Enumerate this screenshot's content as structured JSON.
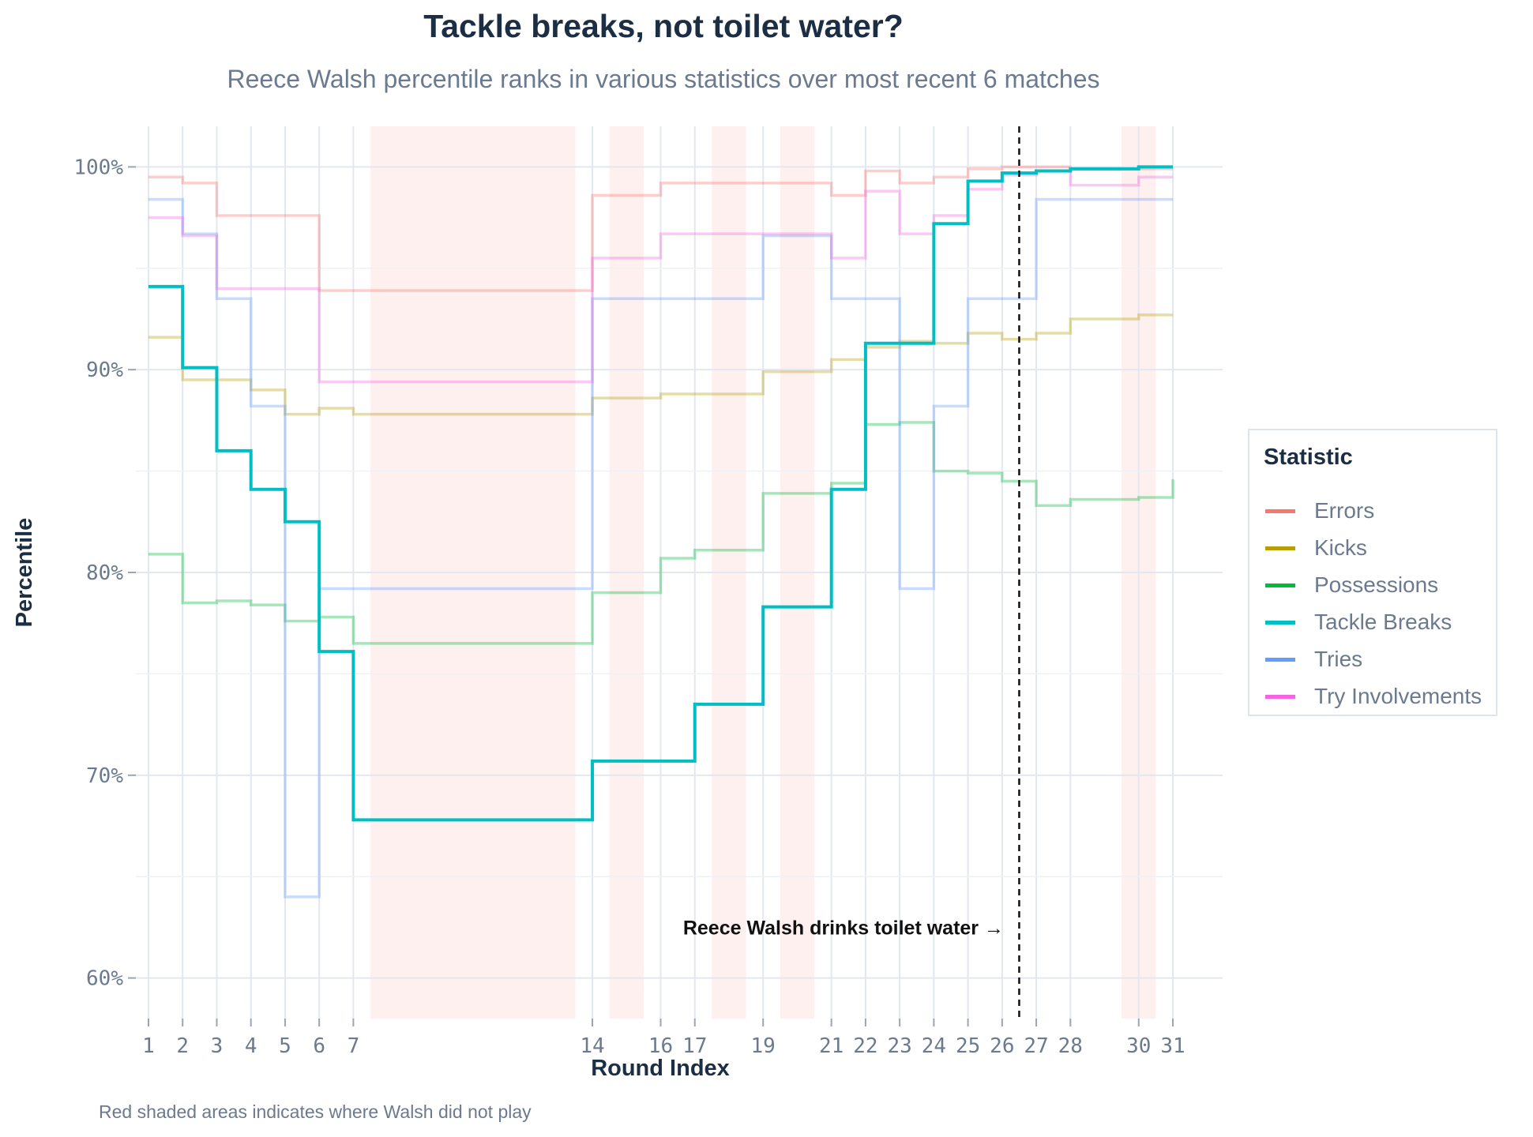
{
  "chart_data": {
    "type": "line",
    "step": "post",
    "title": "Tackle breaks, not toilet water?",
    "subtitle": "Reece Walsh percentile ranks in various statistics over most recent 6 matches",
    "xlabel": "Round Index",
    "ylabel": "Percentile",
    "caption": "Red shaded areas indicates where Walsh did not play",
    "xlim": [
      1,
      31
    ],
    "ylim": [
      58,
      102
    ],
    "x_ticks": [
      1,
      2,
      3,
      4,
      5,
      6,
      7,
      14,
      16,
      17,
      19,
      21,
      22,
      23,
      24,
      25,
      26,
      27,
      28,
      30,
      31
    ],
    "y_ticks": [
      60,
      70,
      80,
      90,
      100
    ],
    "y_tick_labels": [
      "60%",
      "70%",
      "80%",
      "90%",
      "100%"
    ],
    "did_not_play_ranges": [
      [
        7.5,
        13.5
      ],
      [
        14.5,
        15.5
      ],
      [
        17.5,
        18.5
      ],
      [
        19.5,
        20.5
      ],
      [
        29.5,
        30.5
      ]
    ],
    "annotation": {
      "text": "Reece Walsh drinks toilet water →",
      "x_line": 26.5,
      "text_x": 26.05,
      "text_y": 62.5
    },
    "legend_title": "Statistic",
    "x": [
      1,
      2,
      3,
      4,
      5,
      6,
      7,
      14,
      16,
      17,
      19,
      21,
      22,
      23,
      24,
      25,
      26,
      27,
      28,
      30,
      31
    ],
    "series": [
      {
        "name": "Errors",
        "color": "#f8766d",
        "highlight": false,
        "values": [
          99.5,
          99.2,
          97.6,
          97.6,
          97.6,
          93.9,
          93.9,
          98.6,
          99.2,
          99.2,
          99.2,
          98.6,
          99.8,
          99.2,
          99.5,
          99.9,
          100.0,
          100.0,
          99.9,
          99.9,
          99.9
        ]
      },
      {
        "name": "Kicks",
        "color": "#b79f00",
        "highlight": false,
        "values": [
          91.6,
          89.5,
          89.5,
          89.0,
          87.8,
          88.1,
          87.8,
          88.6,
          88.8,
          88.8,
          89.9,
          90.5,
          91.1,
          91.4,
          91.3,
          91.8,
          91.5,
          91.8,
          92.5,
          92.7,
          92.7
        ]
      },
      {
        "name": "Possessions",
        "color": "#00ba38",
        "highlight": false,
        "values": [
          80.9,
          78.5,
          78.6,
          78.4,
          77.6,
          77.8,
          76.5,
          79.0,
          80.7,
          81.1,
          83.9,
          84.4,
          87.3,
          87.4,
          85.0,
          84.9,
          84.5,
          83.3,
          83.6,
          83.7,
          84.6
        ]
      },
      {
        "name": "Tackle Breaks",
        "color": "#00bfc4",
        "highlight": true,
        "values": [
          94.1,
          90.1,
          86.0,
          84.1,
          82.5,
          76.1,
          67.8,
          70.7,
          70.7,
          73.5,
          78.3,
          84.1,
          91.3,
          91.3,
          97.2,
          99.3,
          99.7,
          99.8,
          99.9,
          100.0,
          100.0
        ]
      },
      {
        "name": "Tries",
        "color": "#619cff",
        "highlight": false,
        "values": [
          98.4,
          96.7,
          93.5,
          88.2,
          64.0,
          79.2,
          79.2,
          93.5,
          93.5,
          93.5,
          96.6,
          93.5,
          93.5,
          79.2,
          88.2,
          93.5,
          93.5,
          98.4,
          98.4,
          98.4,
          98.4
        ]
      },
      {
        "name": "Try Involvements",
        "color": "#f564e3",
        "highlight": false,
        "values": [
          97.5,
          96.6,
          94.0,
          94.0,
          94.0,
          89.4,
          89.4,
          95.5,
          96.7,
          96.7,
          96.7,
          95.5,
          98.8,
          96.7,
          97.6,
          98.9,
          99.6,
          99.8,
          99.1,
          99.5,
          99.5
        ]
      }
    ]
  }
}
